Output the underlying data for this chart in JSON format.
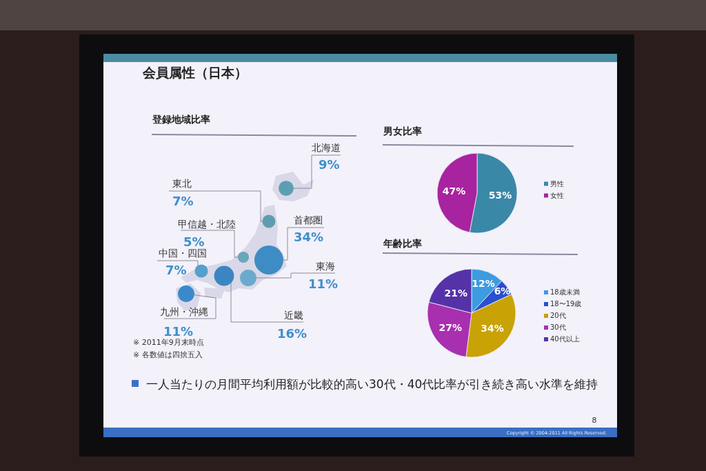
{
  "chart_data": [
    {
      "type": "other",
      "title": "会員属性（日本）",
      "subtitle": "登録地域比率",
      "categories": [
        "北海道",
        "東北",
        "甲信越・北陸",
        "首都圏",
        "東海",
        "近畿",
        "中国・四国",
        "九州・沖縄"
      ],
      "values": [
        9,
        7,
        5,
        34,
        11,
        16,
        7,
        11
      ],
      "value_labels": [
        "9%",
        "7%",
        "5%",
        "34%",
        "11%",
        "16%",
        "7%",
        "11%"
      ],
      "colors": [
        "#5b9fb2",
        "#5e9db0",
        "#6aa6bb",
        "#3d8cc4",
        "#6aaace",
        "#3b86c2",
        "#55a0cc",
        "#3a8acb"
      ],
      "annotations": [
        "※ 2011年9月末時点",
        "※ 各数値は四捨五入"
      ]
    },
    {
      "type": "pie",
      "title": "男女比率",
      "categories": [
        "男性",
        "女性"
      ],
      "values": [
        53,
        47
      ],
      "colors": [
        "#3a88a8",
        "#a8239f"
      ],
      "value_labels": [
        "53%",
        "47%"
      ],
      "legend": "right"
    },
    {
      "type": "pie",
      "title": "年齢比率",
      "categories": [
        "18歳未満",
        "18〜19歳",
        "20代",
        "30代",
        "40代以上"
      ],
      "values": [
        12,
        6,
        34,
        27,
        21
      ],
      "colors": [
        "#3d9be0",
        "#2a4fd0",
        "#c9a206",
        "#a82fb0",
        "#5532a8"
      ],
      "value_labels": [
        "12%",
        "6%",
        "34%",
        "27%",
        "21%"
      ],
      "legend": "right",
      "annotations": [
        "一人当たりの月間平均利用額が比較的高い30代・40代比率が引き続き高い水準を維持",
        "8",
        "Copyright © 2004-2011 All Rights Reserved."
      ]
    }
  ]
}
